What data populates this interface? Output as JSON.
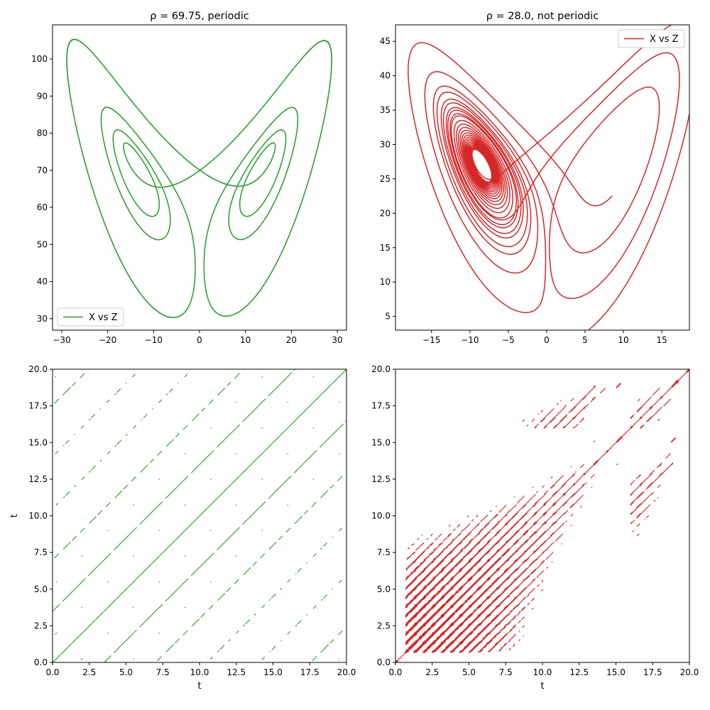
{
  "chart_data": [
    {
      "type": "line",
      "title": "ρ = 69.75, periodic",
      "rho": 69.75,
      "xlabel": "",
      "ylabel": "",
      "xlim": [
        -32,
        32
      ],
      "ylim": [
        26.9,
        109.2
      ],
      "xticks": [
        "−30",
        "−20",
        "−10",
        "0",
        "10",
        "20",
        "30"
      ],
      "xtick_values": [
        -30,
        -20,
        -10,
        0,
        10,
        20,
        30
      ],
      "yticks": [
        "30",
        "40",
        "50",
        "60",
        "70",
        "80",
        "90",
        "100"
      ],
      "ytick_values": [
        30,
        40,
        50,
        60,
        70,
        80,
        90,
        100
      ],
      "series": [
        {
          "name": "X vs Z",
          "color": "#2ca02c"
        }
      ],
      "legend": "lower-left",
      "grid": false
    },
    {
      "type": "line",
      "title": "ρ = 28.0, not periodic",
      "rho": 28.0,
      "xlabel": "",
      "ylabel": "",
      "xlim": [
        -19.7,
        18.6
      ],
      "ylim": [
        3.0,
        47.4
      ],
      "xticks": [
        "−15",
        "−10",
        "−5",
        "0",
        "5",
        "10",
        "15"
      ],
      "xtick_values": [
        -15,
        -10,
        -5,
        0,
        5,
        10,
        15
      ],
      "yticks": [
        "5",
        "10",
        "15",
        "20",
        "25",
        "30",
        "35",
        "40",
        "45"
      ],
      "ytick_values": [
        5,
        10,
        15,
        20,
        25,
        30,
        35,
        40,
        45
      ],
      "series": [
        {
          "name": "X vs Z",
          "color": "#d62728"
        }
      ],
      "legend": "upper-right",
      "grid": false
    },
    {
      "type": "heatmap",
      "title": "",
      "rho": 69.75,
      "xlabel": "t",
      "ylabel": "t",
      "xlim": [
        0,
        20
      ],
      "ylim": [
        0,
        20
      ],
      "xticks": [
        "0.0",
        "2.5",
        "5.0",
        "7.5",
        "10.0",
        "12.5",
        "15.0",
        "17.5",
        "20.0"
      ],
      "xtick_values": [
        0,
        2.5,
        5,
        7.5,
        10,
        12.5,
        15,
        17.5,
        20
      ],
      "yticks": [
        "0.0",
        "2.5",
        "5.0",
        "7.5",
        "10.0",
        "12.5",
        "15.0",
        "17.5",
        "20.0"
      ],
      "ytick_values": [
        0,
        2.5,
        5,
        7.5,
        10,
        12.5,
        15,
        17.5,
        20
      ],
      "color": "#2ca02c",
      "period_diagonal_spacing": 3.5
    },
    {
      "type": "heatmap",
      "title": "",
      "rho": 28.0,
      "xlabel": "t",
      "ylabel": "",
      "xlim": [
        0,
        20
      ],
      "ylim": [
        0,
        20
      ],
      "xticks": [
        "0.0",
        "2.5",
        "5.0",
        "7.5",
        "10.0",
        "12.5",
        "15.0",
        "17.5",
        "20.0"
      ],
      "xtick_values": [
        0,
        2.5,
        5,
        7.5,
        10,
        12.5,
        15,
        17.5,
        20
      ],
      "yticks": [
        "0.0",
        "2.5",
        "5.0",
        "7.5",
        "10.0",
        "12.5",
        "15.0",
        "17.5",
        "20.0"
      ],
      "ytick_values": [
        0,
        2.5,
        5,
        7.5,
        10,
        12.5,
        15,
        17.5,
        20
      ],
      "color": "#d62728"
    }
  ]
}
